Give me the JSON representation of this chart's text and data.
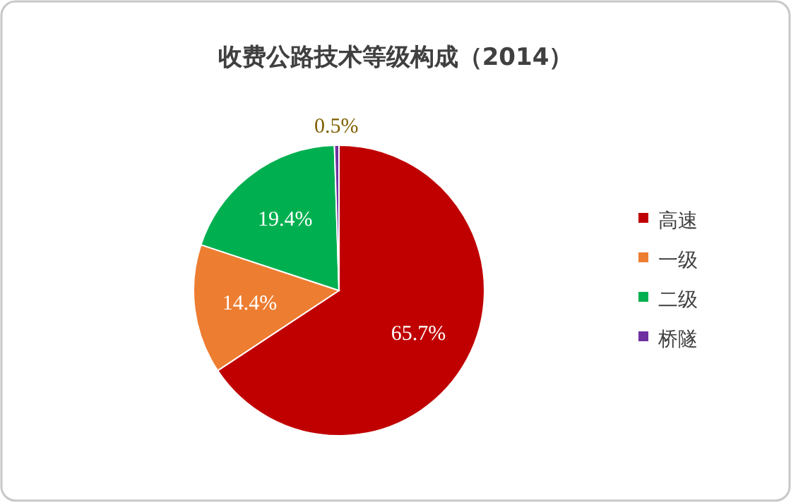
{
  "chart_data": {
    "type": "pie",
    "title": "收费公路技术等级构成（2014）",
    "categories": [
      "高速",
      "一级",
      "二级",
      "桥隧"
    ],
    "values": [
      65.7,
      14.4,
      19.4,
      0.5
    ],
    "value_labels": [
      "65.7%",
      "14.4%",
      "19.4%",
      "0.5%"
    ],
    "colors": [
      "#c00000",
      "#ed7d31",
      "#00b050",
      "#7030a0"
    ],
    "legend": "right"
  }
}
